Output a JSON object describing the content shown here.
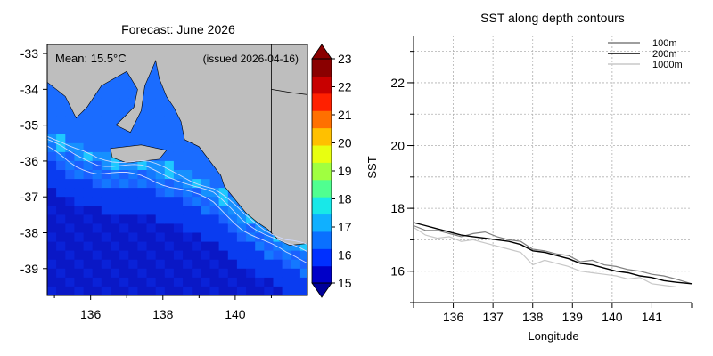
{
  "chart_data": [
    {
      "type": "heatmap",
      "title": "Forecast: June 2026",
      "mean_label": "Mean: 15.5°C",
      "issued_label": "(issued 2026-04-16)",
      "xlim": [
        134.8,
        142.0
      ],
      "ylim": [
        -39.75,
        -32.75
      ],
      "x_ticks": [
        "136",
        "138",
        "140"
      ],
      "y_ticks": [
        "-33",
        "-34",
        "-35",
        "-36",
        "-37",
        "-38",
        "-39"
      ],
      "colorbar": {
        "range": [
          15,
          23
        ],
        "ticks": [
          "15",
          "16",
          "17",
          "18",
          "19",
          "20",
          "21",
          "22",
          "23"
        ],
        "extend": "both"
      },
      "colors": {
        "land": "#bebebe",
        "deep_ocean": "#0a18c6",
        "mid_ocean": "#0a3cf0",
        "shelf_ocean": "#1a6cff",
        "coastal_warm": "#1ec8ff",
        "contour_line": "#cfd8ff",
        "state_border": "#000000"
      }
    },
    {
      "type": "line",
      "title": "SST along depth contours",
      "xlabel": "Longitude",
      "ylabel": "SST",
      "xlim": [
        135.0,
        142.0
      ],
      "ylim": [
        15.0,
        23.5
      ],
      "x_ticks": [
        136,
        137,
        138,
        139,
        140,
        141
      ],
      "y_ticks": [
        16,
        18,
        20,
        22
      ],
      "grid": true,
      "legend_position": "top-right",
      "series": [
        {
          "name": "100m",
          "color": "#7f7f7f",
          "x": [
            135.0,
            135.3,
            135.6,
            135.9,
            136.2,
            136.5,
            136.8,
            137.1,
            137.4,
            137.7,
            138.0,
            138.3,
            138.6,
            138.9,
            139.2,
            139.5,
            139.8,
            140.1,
            140.4,
            140.7,
            141.0,
            141.3,
            141.6,
            142.0
          ],
          "values": [
            17.45,
            17.3,
            17.3,
            17.2,
            17.1,
            17.2,
            17.25,
            17.1,
            17.0,
            16.95,
            16.7,
            16.65,
            16.55,
            16.5,
            16.3,
            16.35,
            16.2,
            16.15,
            16.05,
            16.0,
            15.9,
            15.85,
            15.75,
            15.6
          ]
        },
        {
          "name": "200m",
          "color": "#000000",
          "x": [
            135.0,
            135.3,
            135.6,
            135.9,
            136.2,
            136.5,
            136.8,
            137.1,
            137.4,
            137.7,
            138.0,
            138.3,
            138.6,
            138.9,
            139.2,
            139.5,
            139.8,
            140.1,
            140.4,
            140.7,
            141.0,
            141.3,
            141.6,
            142.0
          ],
          "values": [
            17.55,
            17.45,
            17.35,
            17.25,
            17.15,
            17.1,
            17.05,
            17.0,
            16.95,
            16.85,
            16.65,
            16.6,
            16.5,
            16.4,
            16.25,
            16.2,
            16.1,
            16.0,
            15.95,
            15.85,
            15.8,
            15.7,
            15.65,
            15.6
          ]
        },
        {
          "name": "1000m",
          "color": "#c8c8c8",
          "x": [
            135.0,
            135.3,
            135.6,
            135.9,
            136.2,
            136.5,
            136.8,
            137.1,
            137.4,
            137.7,
            138.0,
            138.3,
            138.6,
            138.9,
            139.2,
            139.5,
            139.8,
            140.1,
            140.4,
            140.7,
            141.0,
            141.3,
            141.6
          ],
          "values": [
            17.4,
            17.15,
            17.05,
            17.1,
            16.95,
            17.0,
            16.9,
            16.8,
            16.7,
            16.6,
            16.2,
            16.35,
            16.25,
            16.15,
            16.0,
            15.95,
            15.9,
            15.85,
            15.75,
            15.8,
            15.6,
            15.55,
            15.5
          ]
        }
      ]
    }
  ]
}
